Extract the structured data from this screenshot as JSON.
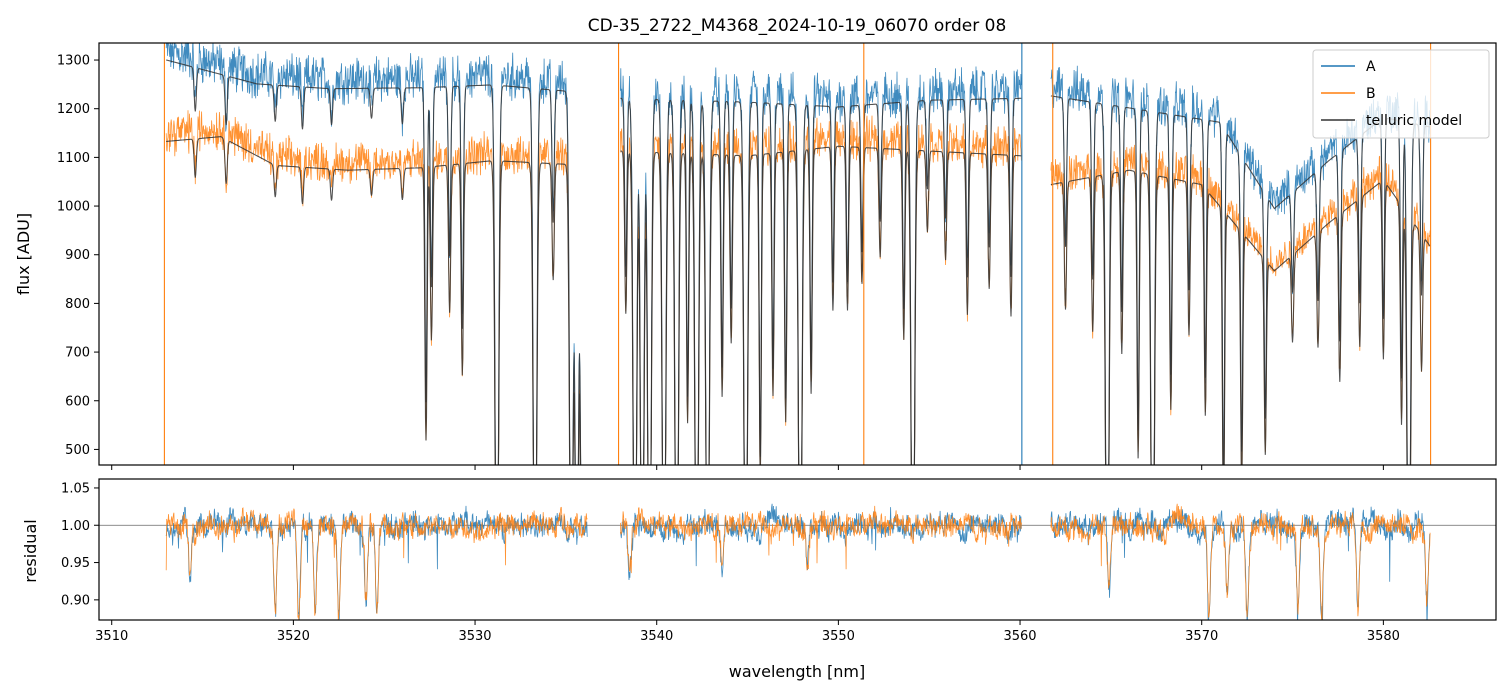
{
  "chart_data": [
    {
      "type": "line",
      "title": "CD-35_2722_M4368_2024-10-19_06070  order 08",
      "xlabel": "",
      "ylabel": "flux [ADU]",
      "xlim": [
        3509.3,
        3586.2
      ],
      "ylim": [
        468,
        1335
      ],
      "yticks": [
        500,
        600,
        700,
        800,
        900,
        1000,
        1100,
        1200,
        1300
      ],
      "xticks": [
        3510,
        3520,
        3530,
        3540,
        3550,
        3560,
        3570,
        3580
      ],
      "legend_position": "top-right",
      "segments": [
        [
          3513.0,
          3536.2
        ],
        [
          3538.0,
          3560.1
        ],
        [
          3561.7,
          3582.6
        ]
      ],
      "series": [
        {
          "name": "A",
          "color": "#1f77b4",
          "continuum_points": [
            [
              3513.0,
              1320
            ],
            [
              3515.0,
              1300
            ],
            [
              3518.0,
              1270
            ],
            [
              3522.0,
              1260
            ],
            [
              3527.0,
              1262
            ],
            [
              3531.0,
              1268
            ],
            [
              3535.0,
              1255
            ],
            [
              3536.2,
              1245
            ],
            [
              3538.0,
              1240
            ],
            [
              3545.0,
              1232
            ],
            [
              3550.0,
              1222
            ],
            [
              3555.0,
              1236
            ],
            [
              3560.1,
              1240
            ],
            [
              3561.7,
              1245
            ],
            [
              3566.0,
              1220
            ],
            [
              3571.0,
              1190
            ],
            [
              3574.0,
              1010
            ],
            [
              3577.0,
              1110
            ],
            [
              3580.0,
              1200
            ],
            [
              3582.6,
              1180
            ]
          ]
        },
        {
          "name": "B",
          "color": "#ff7f0e",
          "continuum_points": [
            [
              3513.0,
              1150
            ],
            [
              3516.0,
              1160
            ],
            [
              3519.0,
              1100
            ],
            [
              3523.0,
              1090
            ],
            [
              3527.0,
              1095
            ],
            [
              3531.0,
              1110
            ],
            [
              3536.2,
              1100
            ],
            [
              3538.0,
              1130
            ],
            [
              3545.0,
              1120
            ],
            [
              3550.0,
              1140
            ],
            [
              3555.0,
              1130
            ],
            [
              3560.1,
              1120
            ],
            [
              3561.7,
              1060
            ],
            [
              3566.0,
              1090
            ],
            [
              3570.0,
              1060
            ],
            [
              3574.0,
              880
            ],
            [
              3577.0,
              980
            ],
            [
              3580.0,
              1070
            ],
            [
              3582.6,
              930
            ]
          ]
        },
        {
          "name": "telluric model",
          "color": "#333333",
          "role": "model"
        }
      ],
      "absorption_lines": [
        [
          3514.6,
          0.07
        ],
        [
          3516.3,
          0.08
        ],
        [
          3519.0,
          0.06
        ],
        [
          3520.5,
          0.07
        ],
        [
          3522.1,
          0.06
        ],
        [
          3524.3,
          0.05
        ],
        [
          3526.0,
          0.06
        ],
        [
          3527.3,
          0.52
        ],
        [
          3527.6,
          0.33
        ],
        [
          3528.6,
          0.28
        ],
        [
          3529.3,
          0.4
        ],
        [
          3531.2,
          0.99
        ],
        [
          3533.3,
          0.99
        ],
        [
          3534.3,
          0.22
        ],
        [
          3535.3,
          0.99
        ],
        [
          3535.6,
          0.99
        ],
        [
          3535.9,
          0.99
        ],
        [
          3536.1,
          0.99
        ],
        [
          3538.3,
          0.3
        ],
        [
          3538.8,
          0.99
        ],
        [
          3539.2,
          0.99
        ],
        [
          3539.6,
          0.99
        ],
        [
          3540.4,
          0.99
        ],
        [
          3541.1,
          0.99
        ],
        [
          3541.7,
          0.5
        ],
        [
          3542.2,
          0.99
        ],
        [
          3542.8,
          0.99
        ],
        [
          3543.6,
          0.45
        ],
        [
          3544.1,
          0.35
        ],
        [
          3544.9,
          0.99
        ],
        [
          3545.7,
          0.6
        ],
        [
          3546.4,
          0.45
        ],
        [
          3547.1,
          0.5
        ],
        [
          3547.9,
          0.99
        ],
        [
          3548.5,
          0.45
        ],
        [
          3549.7,
          0.3
        ],
        [
          3550.5,
          0.3
        ],
        [
          3551.3,
          0.25
        ],
        [
          3552.3,
          0.2
        ],
        [
          3553.6,
          0.35
        ],
        [
          3554.1,
          0.99
        ],
        [
          3554.9,
          0.15
        ],
        [
          3555.9,
          0.2
        ],
        [
          3557.1,
          0.3
        ],
        [
          3558.3,
          0.25
        ],
        [
          3559.5,
          0.3
        ],
        [
          3562.5,
          0.25
        ],
        [
          3564.0,
          0.3
        ],
        [
          3564.8,
          0.99
        ],
        [
          3565.6,
          0.35
        ],
        [
          3566.5,
          0.55
        ],
        [
          3567.3,
          0.99
        ],
        [
          3568.3,
          0.45
        ],
        [
          3569.3,
          0.3
        ],
        [
          3570.2,
          0.45
        ],
        [
          3571.2,
          0.65
        ],
        [
          3572.2,
          0.55
        ],
        [
          3573.5,
          0.45
        ],
        [
          3575.0,
          0.2
        ],
        [
          3576.4,
          0.25
        ],
        [
          3577.6,
          0.35
        ],
        [
          3578.7,
          0.3
        ],
        [
          3580.0,
          0.35
        ],
        [
          3581.0,
          0.45
        ],
        [
          3581.4,
          0.99
        ],
        [
          3582.1,
          0.3
        ]
      ],
      "spikes": [
        [
          3512.9,
          "B"
        ],
        [
          3537.9,
          "B"
        ],
        [
          3551.4,
          "B"
        ],
        [
          3560.1,
          "A"
        ],
        [
          3561.8,
          "B"
        ],
        [
          3582.6,
          "B"
        ]
      ]
    },
    {
      "type": "line",
      "title": "",
      "xlabel": "wavelength [nm]",
      "ylabel": "residual",
      "xlim": [
        3509.3,
        3586.2
      ],
      "ylim": [
        0.873,
        1.062
      ],
      "yticks": [
        0.9,
        0.95,
        1.0,
        1.05
      ],
      "ytick_labels": [
        "0.90",
        "0.95",
        "1.00",
        "1.05"
      ],
      "xticks": [
        3510,
        3520,
        3530,
        3540,
        3550,
        3560,
        3570,
        3580
      ],
      "reference_line": 1.0,
      "series": [
        {
          "name": "A",
          "color": "#1f77b4"
        },
        {
          "name": "B",
          "color": "#ff7f0e"
        }
      ],
      "dips": [
        [
          3514.3,
          0.93
        ],
        [
          3519.0,
          0.89
        ],
        [
          3520.3,
          0.87
        ],
        [
          3521.2,
          0.88
        ],
        [
          3522.5,
          0.87
        ],
        [
          3524.0,
          0.9
        ],
        [
          3524.6,
          0.88
        ],
        [
          3538.5,
          0.94
        ],
        [
          3543.6,
          0.94
        ],
        [
          3548.3,
          0.95
        ],
        [
          3564.9,
          0.91
        ],
        [
          3570.4,
          0.88
        ],
        [
          3571.4,
          0.9
        ],
        [
          3572.5,
          0.88
        ],
        [
          3575.3,
          0.89
        ],
        [
          3576.6,
          0.88
        ],
        [
          3578.6,
          0.88
        ],
        [
          3582.4,
          0.89
        ]
      ]
    }
  ]
}
